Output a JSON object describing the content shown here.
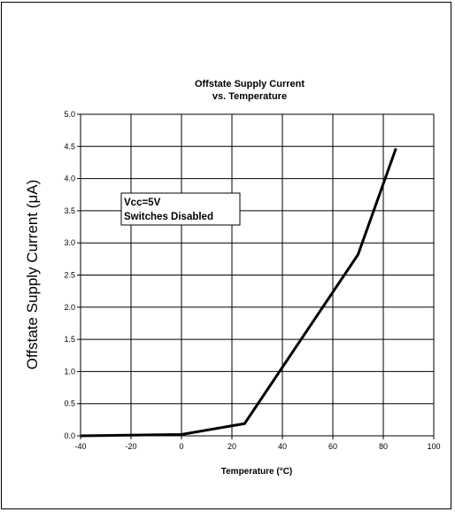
{
  "chart_data": {
    "type": "line",
    "title": [
      "Offstate Supply Current",
      "vs. Temperature"
    ],
    "xlabel": "Temperature (°C)",
    "ylabel": "Offstate Supply Current (μA)",
    "xlim": [
      -40,
      100
    ],
    "ylim": [
      0,
      5
    ],
    "xticks": [
      -40,
      -20,
      0,
      20,
      40,
      60,
      80,
      100
    ],
    "yticks": [
      "0.0",
      "0.5",
      "1.0",
      "1.5",
      "2.0",
      "2.5",
      "3.0",
      "3.5",
      "4.0",
      "4.5",
      "5.0"
    ],
    "grid": true,
    "series": [
      {
        "x": [
          -40,
          0,
          25,
          70,
          85
        ],
        "y": [
          0.0,
          0.02,
          0.19,
          2.82,
          4.47
        ]
      }
    ],
    "annotation": [
      "Vcc=5V",
      "Switches Disabled"
    ]
  }
}
